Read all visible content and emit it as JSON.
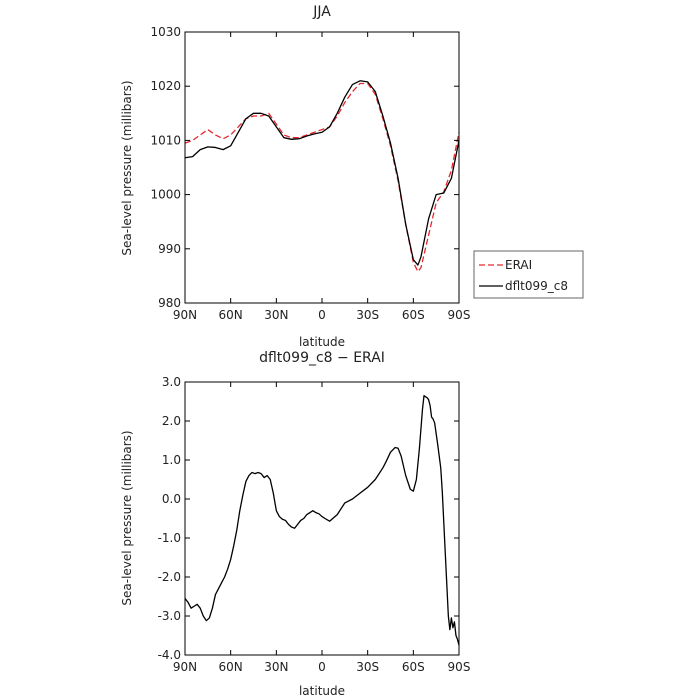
{
  "chart_data": [
    {
      "type": "line",
      "title": "JJA",
      "xlabel": "latitude",
      "ylabel": "Sea-level pressure (millibars)",
      "xlim": [
        90,
        -90
      ],
      "ylim": [
        980,
        1030
      ],
      "xticks": [
        90,
        60,
        30,
        0,
        -30,
        -60,
        -90
      ],
      "xtick_labels": [
        "90N",
        "60N",
        "30N",
        "0",
        "30S",
        "60S",
        "90S"
      ],
      "yticks": [
        980,
        990,
        1000,
        1010,
        1020,
        1030
      ],
      "ytick_labels": [
        "980",
        "990",
        "1000",
        "1010",
        "1020",
        "1030"
      ],
      "grid": false,
      "legend": "right",
      "series": [
        {
          "name": "ERAI",
          "color": "#e8262e",
          "dash": true,
          "x": [
            90,
            85,
            80,
            75,
            70,
            65,
            60,
            55,
            50,
            45,
            40,
            35,
            30,
            25,
            20,
            15,
            10,
            5,
            0,
            -5,
            -10,
            -15,
            -20,
            -25,
            -30,
            -35,
            -40,
            -45,
            -50,
            -55,
            -60,
            -63,
            -65,
            -70,
            -75,
            -80,
            -85,
            -90
          ],
          "y": [
            1009.5,
            1010.0,
            1011.0,
            1012.0,
            1011.0,
            1010.3,
            1011.0,
            1012.5,
            1014.0,
            1014.5,
            1014.5,
            1015.0,
            1013.0,
            1011.0,
            1010.5,
            1010.5,
            1011.0,
            1011.5,
            1012.0,
            1012.5,
            1014.5,
            1017.0,
            1019.0,
            1020.5,
            1020.5,
            1018.5,
            1014.0,
            1009.0,
            1002.5,
            994.5,
            987.5,
            985.8,
            986.5,
            992.5,
            998.5,
            1000.5,
            1004.5,
            1011.5
          ]
        },
        {
          "name": "dflt099_c8",
          "color": "#000000",
          "dash": false,
          "x": [
            90,
            85,
            80,
            75,
            70,
            65,
            60,
            55,
            50,
            45,
            40,
            35,
            30,
            25,
            20,
            15,
            10,
            5,
            0,
            -5,
            -10,
            -15,
            -20,
            -25,
            -30,
            -35,
            -40,
            -45,
            -50,
            -55,
            -60,
            -63,
            -65,
            -70,
            -75,
            -80,
            -85,
            -90
          ],
          "y": [
            1006.8,
            1007.0,
            1008.3,
            1008.8,
            1008.7,
            1008.3,
            1009.0,
            1011.5,
            1014.0,
            1015.0,
            1015.0,
            1014.5,
            1012.5,
            1010.5,
            1010.2,
            1010.3,
            1010.8,
            1011.2,
            1011.5,
            1012.5,
            1015.0,
            1018.0,
            1020.3,
            1021.0,
            1020.8,
            1019.0,
            1014.5,
            1009.5,
            1003.0,
            994.5,
            988.0,
            987.0,
            988.5,
            995.5,
            1000.0,
            1000.3,
            1003.0,
            1010.0
          ]
        }
      ]
    },
    {
      "type": "line",
      "title": "dflt099_c8 − ERAI",
      "xlabel": "latitude",
      "ylabel": "Sea-level pressure (millibars)",
      "xlim": [
        90,
        -90
      ],
      "ylim": [
        -4.0,
        3.0
      ],
      "xticks": [
        90,
        60,
        30,
        0,
        -30,
        -60,
        -90
      ],
      "xtick_labels": [
        "90N",
        "60N",
        "30N",
        "0",
        "30S",
        "60S",
        "90S"
      ],
      "yticks": [
        -4.0,
        -3.0,
        -2.0,
        -1.0,
        0.0,
        1.0,
        2.0,
        3.0
      ],
      "ytick_labels": [
        "-4.0",
        "-3.0",
        "-2.0",
        "-1.0",
        "0.0",
        "1.0",
        "2.0",
        "3.0"
      ],
      "grid": false,
      "series": [
        {
          "color": "#000000",
          "dash": false,
          "x": [
            90,
            88,
            86,
            84,
            82,
            80,
            78,
            76,
            74,
            72,
            70,
            68,
            66,
            64,
            62,
            60,
            58,
            56,
            54,
            52,
            50,
            48,
            46,
            44,
            42,
            40,
            38,
            36,
            34,
            32,
            30,
            28,
            26,
            24,
            22,
            20,
            18,
            16,
            14,
            12,
            10,
            8,
            6,
            4,
            2,
            0,
            -2,
            -5,
            -10,
            -15,
            -20,
            -25,
            -30,
            -35,
            -40,
            -42,
            -45,
            -48,
            -50,
            -52,
            -55,
            -58,
            -60,
            -62,
            -64,
            -66,
            -67,
            -68,
            -69,
            -70,
            -71,
            -72,
            -73,
            -74,
            -76,
            -78,
            -79,
            -80,
            -81,
            -82,
            -83,
            -84,
            -85,
            -86,
            -87,
            -88,
            -89,
            -90
          ],
          "y": [
            -2.55,
            -2.65,
            -2.8,
            -2.75,
            -2.7,
            -2.8,
            -3.0,
            -3.12,
            -3.05,
            -2.8,
            -2.45,
            -2.3,
            -2.15,
            -2.0,
            -1.8,
            -1.55,
            -1.2,
            -0.8,
            -0.3,
            0.1,
            0.45,
            0.6,
            0.68,
            0.65,
            0.68,
            0.65,
            0.55,
            0.6,
            0.5,
            0.15,
            -0.3,
            -0.45,
            -0.52,
            -0.55,
            -0.65,
            -0.72,
            -0.75,
            -0.65,
            -0.55,
            -0.5,
            -0.4,
            -0.35,
            -0.3,
            -0.35,
            -0.38,
            -0.45,
            -0.5,
            -0.57,
            -0.4,
            -0.1,
            0.0,
            0.15,
            0.3,
            0.5,
            0.8,
            0.95,
            1.2,
            1.32,
            1.3,
            1.1,
            0.6,
            0.25,
            0.2,
            0.5,
            1.3,
            2.3,
            2.65,
            2.62,
            2.6,
            2.55,
            2.4,
            2.1,
            2.05,
            1.95,
            1.4,
            0.8,
            0.2,
            -0.6,
            -1.4,
            -2.2,
            -3.0,
            -3.35,
            -3.05,
            -3.3,
            -3.15,
            -3.5,
            -3.6,
            -3.75
          ]
        }
      ]
    }
  ]
}
